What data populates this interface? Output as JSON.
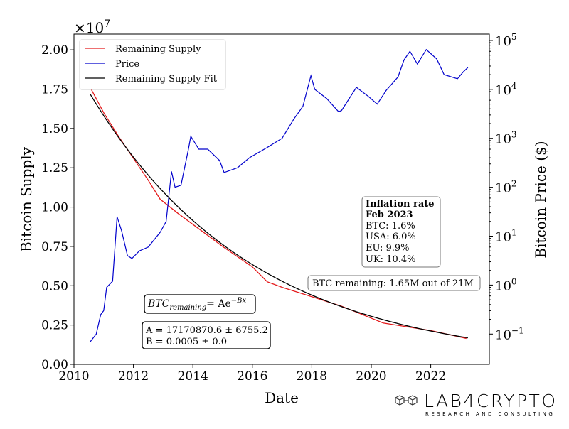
{
  "chart_data": {
    "type": "line",
    "xlabel": "Date",
    "ylabel_left": "Bitcoin Supply",
    "ylabel_right": "Bitcoin Price ($)",
    "left_axis_multiplier": "×10",
    "left_axis_multiplier_exp": "7",
    "xlim": [
      2010,
      2024
    ],
    "ylim_left": [
      0,
      21000000
    ],
    "ylim_right_log10": [
      -1.62,
      5.13
    ],
    "right_scale": "log",
    "grid": false,
    "legend_placement": "top-left",
    "x_ticks": [
      "2010",
      "2012",
      "2014",
      "2016",
      "2018",
      "2020",
      "2022"
    ],
    "y_left_ticks": [
      "0.00",
      "0.25",
      "0.50",
      "0.75",
      "1.00",
      "1.25",
      "1.50",
      "1.75",
      "2.00"
    ],
    "y_right_ticks": [
      {
        "base": "10",
        "exp": "5"
      },
      {
        "base": "10",
        "exp": "4"
      },
      {
        "base": "10",
        "exp": "3"
      },
      {
        "base": "10",
        "exp": "2"
      },
      {
        "base": "10",
        "exp": "1"
      },
      {
        "base": "10",
        "exp": "0"
      },
      {
        "base": "10",
        "exp": "−1"
      }
    ],
    "series": [
      {
        "name": "Remaining Supply",
        "color": "#e41a1c",
        "axis": "left",
        "x": [
          2010.55,
          2011.0,
          2011.5,
          2012.0,
          2012.5,
          2012.9,
          2013.5,
          2014.0,
          2015.0,
          2016.0,
          2016.5,
          2017.0,
          2018.0,
          2019.0,
          2020.4,
          2021.0,
          2022.0,
          2023.2
        ],
        "y": [
          17600000,
          16000000,
          14500000,
          13100000,
          11700000,
          10500000,
          9600000,
          8900000,
          7500000,
          6200000,
          5250000,
          4900000,
          4300000,
          3700000,
          2630000,
          2450000,
          2150000,
          1650000
        ]
      },
      {
        "name": "Price",
        "color": "#0000cc",
        "axis": "right",
        "x": [
          2010.55,
          2010.75,
          2010.9,
          2011.0,
          2011.1,
          2011.3,
          2011.45,
          2011.6,
          2011.8,
          2011.95,
          2012.2,
          2012.5,
          2012.9,
          2013.1,
          2013.28,
          2013.4,
          2013.6,
          2013.85,
          2013.93,
          2014.2,
          2014.5,
          2014.9,
          2015.05,
          2015.5,
          2015.9,
          2016.5,
          2017.0,
          2017.4,
          2017.7,
          2017.97,
          2018.1,
          2018.5,
          2018.9,
          2019.0,
          2019.5,
          2019.9,
          2020.2,
          2020.5,
          2020.9,
          2021.1,
          2021.3,
          2021.55,
          2021.85,
          2022.2,
          2022.45,
          2022.9,
          2023.1,
          2023.25
        ],
        "y": [
          0.07,
          0.1,
          0.25,
          0.3,
          0.9,
          1.2,
          25,
          13,
          4,
          3.5,
          5,
          6,
          12,
          20,
          210,
          100,
          110,
          600,
          1100,
          600,
          600,
          350,
          200,
          250,
          400,
          650,
          1000,
          2500,
          4500,
          19000,
          10000,
          6500,
          3500,
          3700,
          11000,
          7200,
          5000,
          9500,
          18000,
          40000,
          60000,
          33000,
          65000,
          42000,
          20000,
          16500,
          23000,
          28000
        ]
      },
      {
        "name": "Remaining Supply Fit",
        "color": "#000000",
        "axis": "left",
        "model": "A*exp(-B*days)",
        "A": 17170870.6,
        "B": 0.0005,
        "x_start": 2010.55,
        "x_end": 2023.25
      }
    ],
    "annotations": {
      "inflation_title_1": "Inflation rate",
      "inflation_title_2": "Feb 2023",
      "inflation_lines": [
        "BTC: 1.6%",
        "USA: 6.0%",
        "EU: 9.9%",
        "UK: 10.4%"
      ],
      "remaining": "BTC remaining: 1.65M out of 21M",
      "formula_lhs": "BTC",
      "formula_sub": "remaining",
      "formula_rhs": "= Ae",
      "formula_exp": "−Bx",
      "fit_a": "A = 17170870.6 ± 6755.2",
      "fit_b": "B = 0.0005 ± 0.0"
    }
  },
  "logo": {
    "name": "LAB4CRYPTO",
    "tagline": "RESEARCH AND CONSULTING"
  }
}
